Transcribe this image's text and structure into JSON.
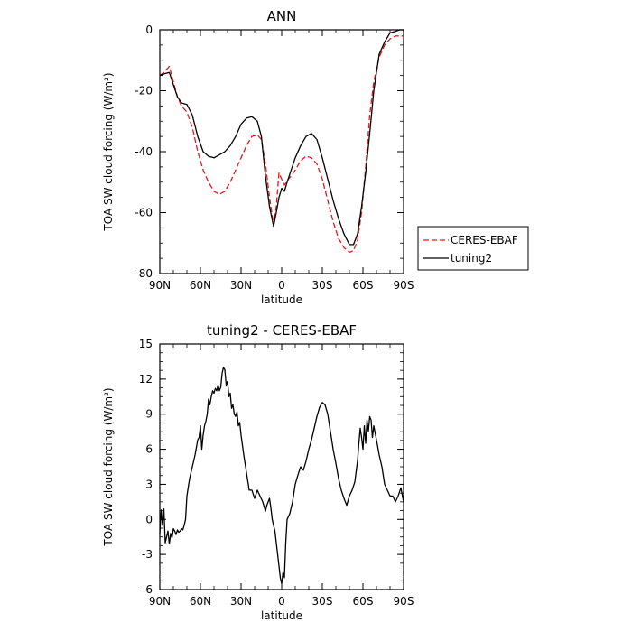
{
  "chart_data": [
    {
      "type": "line",
      "title": "ANN",
      "xlabel": "latitude",
      "ylabel": "TOA SW cloud forcing (W/m²)",
      "xticks": [
        {
          "value": 90,
          "label": "90N"
        },
        {
          "value": 60,
          "label": "60N"
        },
        {
          "value": 30,
          "label": "30N"
        },
        {
          "value": 0,
          "label": "0"
        },
        {
          "value": -30,
          "label": "30S"
        },
        {
          "value": -60,
          "label": "60S"
        },
        {
          "value": -90,
          "label": "90S"
        }
      ],
      "yticks": [
        0,
        -20,
        -40,
        -60,
        -80
      ],
      "xlim": [
        90,
        -90
      ],
      "ylim": [
        -80,
        0
      ],
      "legend_position": "right",
      "series": [
        {
          "name": "CERES-EBAF",
          "color": "#e31a1c",
          "dash": "dashed",
          "x": [
            90,
            87,
            83,
            80,
            77,
            74,
            70,
            66,
            62,
            58,
            54,
            50,
            46,
            42,
            38,
            34,
            30,
            26,
            22,
            18,
            15,
            12,
            9,
            6,
            4,
            2,
            0,
            -2,
            -4,
            -7,
            -10,
            -14,
            -18,
            -22,
            -26,
            -30,
            -34,
            -38,
            -42,
            -46,
            -50,
            -53,
            -56,
            -59,
            -62,
            -65,
            -68,
            -72,
            -76,
            -80,
            -84,
            -87,
            -90
          ],
          "y": [
            -15,
            -14,
            -12,
            -17,
            -22,
            -25,
            -27,
            -32,
            -40,
            -46,
            -50,
            -53,
            -54,
            -53,
            -50,
            -46,
            -42,
            -38,
            -35,
            -34.5,
            -36,
            -44,
            -55,
            -64,
            -58,
            -47,
            -49,
            -51,
            -49.5,
            -48,
            -46,
            -43,
            -41.5,
            -42,
            -44,
            -49,
            -56,
            -63,
            -68.5,
            -71.5,
            -73,
            -72.5,
            -69,
            -60,
            -45,
            -28,
            -17,
            -9,
            -5,
            -3,
            -2,
            -2,
            -2
          ]
        },
        {
          "name": "tuning2",
          "color": "#000000",
          "dash": "solid",
          "x": [
            90,
            87,
            83,
            80,
            77,
            74,
            70,
            66,
            62,
            58,
            54,
            50,
            46,
            42,
            38,
            34,
            30,
            26,
            22,
            18,
            15,
            12,
            9,
            6,
            4,
            2,
            0,
            -2,
            -4,
            -7,
            -10,
            -14,
            -18,
            -22,
            -26,
            -30,
            -34,
            -38,
            -42,
            -46,
            -50,
            -53,
            -56,
            -59,
            -62,
            -65,
            -68,
            -72,
            -76,
            -80,
            -84,
            -87,
            -90
          ],
          "y": [
            -15,
            -14.5,
            -14,
            -18,
            -22,
            -24,
            -24.5,
            -28,
            -35,
            -40,
            -41.5,
            -42,
            -41,
            -40,
            -38,
            -35,
            -31,
            -29,
            -28.5,
            -30,
            -35,
            -48,
            -58,
            -64.5,
            -60,
            -55,
            -52,
            -53,
            -50,
            -46,
            -42,
            -38,
            -35,
            -34,
            -36,
            -42,
            -49,
            -56,
            -62,
            -67,
            -70.5,
            -70.5,
            -67,
            -58,
            -47,
            -34,
            -20,
            -8,
            -4,
            -1,
            -0.5,
            0,
            0
          ]
        }
      ]
    },
    {
      "type": "line",
      "title": "tuning2 - CERES-EBAF",
      "xlabel": "latitude",
      "ylabel": "TOA SW cloud forcing (W/m²)",
      "xticks": [
        {
          "value": 90,
          "label": "90N"
        },
        {
          "value": 60,
          "label": "60N"
        },
        {
          "value": 30,
          "label": "30N"
        },
        {
          "value": 0,
          "label": "0"
        },
        {
          "value": -30,
          "label": "30S"
        },
        {
          "value": -60,
          "label": "60S"
        },
        {
          "value": -90,
          "label": "90S"
        }
      ],
      "yticks": [
        15,
        12,
        9,
        6,
        3,
        0,
        -3,
        -6
      ],
      "xlim": [
        90,
        -90
      ],
      "ylim": [
        -6,
        15
      ],
      "series": [
        {
          "color": "#000000",
          "dash": "solid",
          "x": [
            90,
            89,
            88,
            87,
            86,
            85,
            84,
            83,
            82,
            81,
            80,
            79,
            78,
            77,
            76,
            75,
            74,
            73,
            72,
            71,
            70,
            68,
            66,
            64,
            62,
            61,
            60,
            59,
            58,
            57,
            56,
            55,
            54,
            53,
            52,
            51,
            50,
            49,
            48,
            47,
            46,
            45,
            44,
            43,
            42,
            41,
            40,
            39,
            38,
            37,
            36,
            35,
            34,
            33,
            32,
            31,
            30,
            28,
            26,
            24,
            22,
            20,
            18,
            16,
            14,
            12,
            11,
            10,
            9,
            8,
            7,
            6,
            5,
            4,
            3,
            2,
            1,
            0,
            -1,
            -2,
            -3,
            -4,
            -6,
            -8,
            -10,
            -12,
            -14,
            -16,
            -18,
            -20,
            -22,
            -24,
            -26,
            -28,
            -30,
            -32,
            -34,
            -36,
            -38,
            -40,
            -42,
            -44,
            -46,
            -48,
            -50,
            -52,
            -54,
            -56,
            -57,
            -58,
            -59,
            -60,
            -61,
            -62,
            -63,
            -64,
            -65,
            -66,
            -67,
            -68,
            -70,
            -72,
            -74,
            -76,
            -78,
            -80,
            -82,
            -84,
            -86,
            -88,
            -90
          ],
          "y": [
            -1.2,
            0.8,
            -0.5,
            0.9,
            -2.0,
            -1.5,
            -1.0,
            -2.1,
            -1.2,
            -1.6,
            -0.8,
            -1.0,
            -1.3,
            -0.9,
            -1.1,
            -1.0,
            -0.8,
            -0.9,
            -0.5,
            0.0,
            2.0,
            3.5,
            4.5,
            5.5,
            6.8,
            7.0,
            8.0,
            6.0,
            7.2,
            8.0,
            8.4,
            9.0,
            10.3,
            9.8,
            10.5,
            11.0,
            10.8,
            11.2,
            11.0,
            11.5,
            11.0,
            11.3,
            12.5,
            13.0,
            12.8,
            11.5,
            11.8,
            10.5,
            10.8,
            9.5,
            9.8,
            9.0,
            8.8,
            9.2,
            8.0,
            8.3,
            7.2,
            5.5,
            4.0,
            2.5,
            2.5,
            1.8,
            2.5,
            2.0,
            1.5,
            0.7,
            1.2,
            1.5,
            1.8,
            1.0,
            0.0,
            -0.5,
            -1.0,
            -2.0,
            -3.0,
            -4.0,
            -5.0,
            -5.5,
            -4.5,
            -5.0,
            -2.0,
            0.0,
            0.5,
            1.5,
            3.0,
            3.8,
            4.5,
            4.2,
            5.0,
            6.0,
            6.8,
            7.8,
            8.8,
            9.6,
            10.0,
            9.8,
            9.0,
            7.5,
            6.0,
            4.8,
            3.5,
            2.5,
            1.8,
            1.2,
            2.0,
            2.5,
            3.2,
            5.0,
            6.5,
            7.8,
            7.0,
            6.0,
            8.0,
            6.5,
            8.5,
            7.5,
            8.8,
            8.5,
            7.0,
            8.0,
            6.8,
            5.5,
            4.5,
            3.0,
            2.5,
            2.0,
            2.0,
            1.5,
            2.0,
            2.7,
            1.5
          ]
        }
      ]
    }
  ]
}
